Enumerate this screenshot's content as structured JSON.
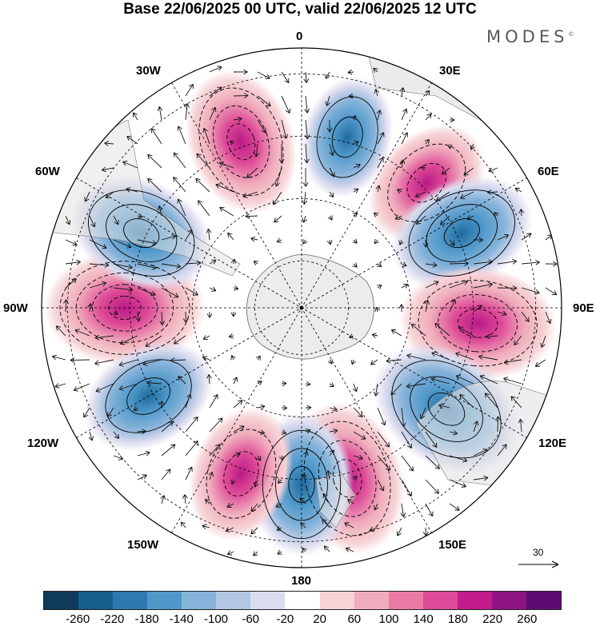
{
  "title": "Base 22/06/2025 00 UTC, valid 22/06/2025 12 UTC",
  "brand": "MODES",
  "brand_mark": "©",
  "longitude_labels": {
    "lon_0": "0",
    "lon_30e": "30E",
    "lon_60e": "60E",
    "lon_90e": "90E",
    "lon_120e": "120E",
    "lon_150e": "150E",
    "lon_180": "180",
    "lon_150w": "150W",
    "lon_120w": "120W",
    "lon_90w": "90W",
    "lon_60w": "60W",
    "lon_30w": "30W"
  },
  "projection": "south polar stereographic",
  "reference_vector": {
    "label": "30",
    "value": 30
  },
  "colorbar": {
    "colors": [
      "#0f3a5a",
      "#145f8c",
      "#2d7ab3",
      "#4f98c9",
      "#86b3da",
      "#b3c6e3",
      "#dcdcef",
      "#ffffff",
      "#f6d3d7",
      "#f0acbc",
      "#ea7aa5",
      "#de4a97",
      "#c21d8a",
      "#8f1483",
      "#5d0d72"
    ],
    "tick_labels": [
      "-260",
      "-220",
      "-180",
      "-140",
      "-100",
      "-60",
      "-20",
      "20",
      "60",
      "100",
      "140",
      "180",
      "220",
      "260"
    ]
  },
  "anomaly_centers": [
    {
      "kind": "positive",
      "lon": "90W",
      "strength": 210
    },
    {
      "kind": "negative",
      "lon": "65W",
      "strength": -170
    },
    {
      "kind": "positive",
      "lon": "20W",
      "strength": 170
    },
    {
      "kind": "negative",
      "lon": "15E",
      "strength": -100
    },
    {
      "kind": "positive",
      "lon": "45E",
      "strength": 130
    },
    {
      "kind": "negative",
      "lon": "65E",
      "strength": -170
    },
    {
      "kind": "positive",
      "lon": "95E",
      "strength": 200
    },
    {
      "kind": "negative",
      "lon": "125E",
      "strength": -200
    },
    {
      "kind": "positive",
      "lon": "165E",
      "strength": 190
    },
    {
      "kind": "negative",
      "lon": "180",
      "strength": -160
    },
    {
      "kind": "positive",
      "lon": "160W",
      "strength": 140
    },
    {
      "kind": "negative",
      "lon": "120W",
      "strength": -140
    }
  ]
}
